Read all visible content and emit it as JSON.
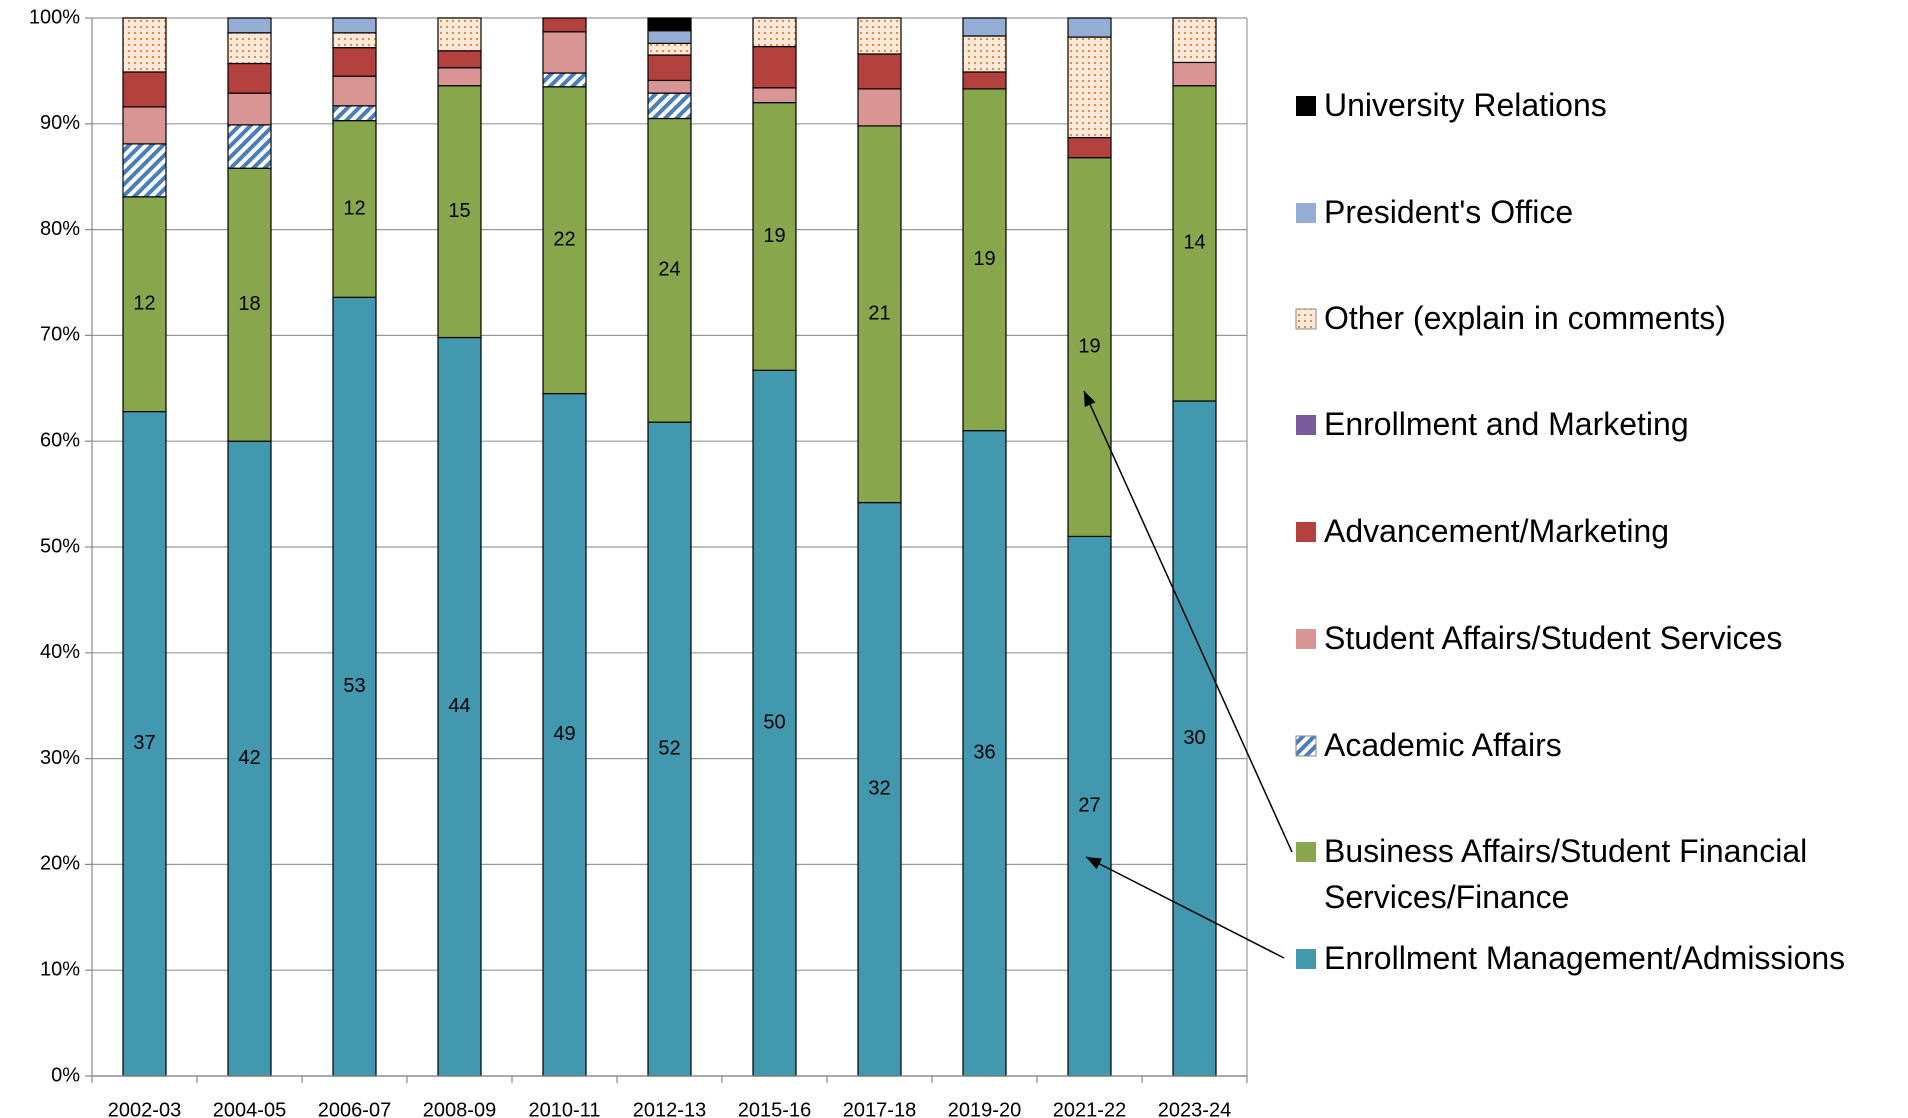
{
  "chart_data": {
    "type": "stacked_bar_100",
    "categories": [
      "2002-03",
      "2004-05",
      "2006-07",
      "2008-09",
      "2010-11",
      "2012-13",
      "2015-16",
      "2017-18",
      "2019-20",
      "2021-22",
      "2023-24"
    ],
    "series": [
      {
        "name": "Enrollment Management/Admissions",
        "color": "#4198af",
        "values": [
          62.8,
          60.0,
          73.6,
          69.8,
          64.5,
          61.8,
          66.7,
          54.2,
          61.0,
          51.0,
          63.8
        ],
        "value_labels": [
          "37",
          "42",
          "53",
          "44",
          "49",
          "52",
          "50",
          "32",
          "36",
          "27",
          "30"
        ]
      },
      {
        "name": "Business Affairs/Student Financial Services/Finance",
        "color": "#88a74c",
        "values": [
          20.3,
          25.8,
          16.7,
          23.8,
          29.0,
          28.7,
          25.3,
          35.6,
          32.3,
          35.8,
          29.8
        ],
        "value_labels": [
          "12",
          "18",
          "12",
          "15",
          "22",
          "24",
          "19",
          "21",
          "19",
          "19",
          "14"
        ]
      },
      {
        "name": "Academic Affairs",
        "color": "#4a7ebb",
        "pattern": "hatch",
        "values": [
          5.0,
          4.1,
          1.4,
          0,
          1.3,
          2.4,
          0,
          0,
          0,
          0,
          0
        ]
      },
      {
        "name": "Student Affairs/Student Services",
        "color": "#d99594",
        "values": [
          3.5,
          3.0,
          2.8,
          1.7,
          3.9,
          1.2,
          1.4,
          3.5,
          0,
          0,
          2.2
        ]
      },
      {
        "name": "Advancement/Marketing",
        "color": "#b3423f",
        "values": [
          3.3,
          2.8,
          2.7,
          1.6,
          1.3,
          2.4,
          3.9,
          3.3,
          1.6,
          1.9,
          0
        ]
      },
      {
        "name": "Enrollment and Marketing",
        "color": "#7a5a9e",
        "values": [
          0,
          0,
          0,
          0,
          0,
          0,
          0,
          0,
          0,
          0,
          0
        ]
      },
      {
        "name": "Other (explain in comments)",
        "color": "#e46c0a",
        "pattern": "dots",
        "values": [
          5.1,
          2.9,
          1.4,
          3.1,
          0,
          1.1,
          2.7,
          3.4,
          3.4,
          9.5,
          4.2
        ]
      },
      {
        "name": "President's Office",
        "color": "#95aed6",
        "values": [
          0,
          1.4,
          1.4,
          0,
          0,
          1.2,
          0,
          0,
          1.7,
          1.8,
          0
        ]
      },
      {
        "name": "University Relations",
        "color": "#000000",
        "values": [
          0,
          0,
          0,
          0,
          0,
          1.2,
          0,
          0,
          0,
          0,
          0
        ]
      }
    ],
    "ylim": [
      0,
      100
    ],
    "yticks": [
      {
        "value": 0,
        "label": "0%"
      },
      {
        "value": 10,
        "label": "10%"
      },
      {
        "value": 20,
        "label": "20%"
      },
      {
        "value": 30,
        "label": "30%"
      },
      {
        "value": 40,
        "label": "40%"
      },
      {
        "value": 50,
        "label": "50%"
      },
      {
        "value": 60,
        "label": "60%"
      },
      {
        "value": 70,
        "label": "70%"
      },
      {
        "value": 80,
        "label": "80%"
      },
      {
        "value": 90,
        "label": "90%"
      },
      {
        "value": 100,
        "label": "100%"
      }
    ],
    "grid": true,
    "legend": "right"
  }
}
